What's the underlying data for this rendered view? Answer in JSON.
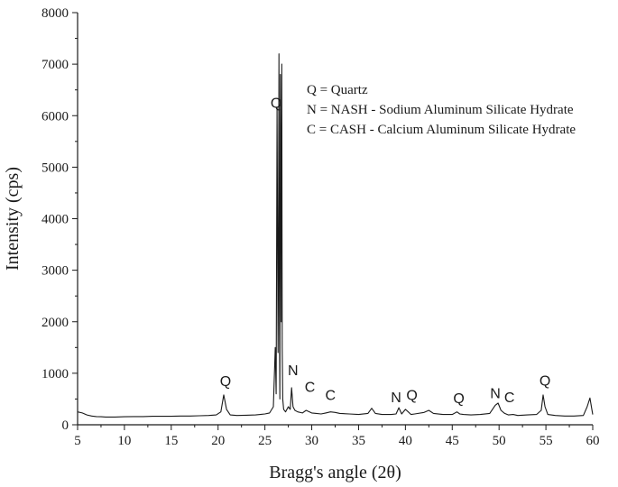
{
  "chart_data": {
    "type": "line",
    "xlabel": "Bragg's angle (2θ)",
    "ylabel": "Intensity (cps)",
    "xlim": [
      5,
      60
    ],
    "ylim": [
      0,
      8000
    ],
    "x_ticks": [
      5,
      10,
      15,
      20,
      25,
      30,
      35,
      40,
      45,
      50,
      55,
      60
    ],
    "y_ticks": [
      0,
      1000,
      2000,
      3000,
      4000,
      5000,
      6000,
      7000,
      8000
    ],
    "grid": false,
    "line_color": "#1a1a1a",
    "legend": [
      "Q = Quartz",
      "N = NASH - Sodium Aluminum Silicate Hydrate",
      "C = CASH - Calcium Aluminum Silicate Hydrate"
    ],
    "peak_labels": [
      {
        "text": "Q",
        "x": 26.2,
        "y": 6150
      },
      {
        "text": "Q",
        "x": 20.8,
        "y": 750
      },
      {
        "text": "N",
        "x": 28.0,
        "y": 960
      },
      {
        "text": "C",
        "x": 29.8,
        "y": 640
      },
      {
        "text": "C",
        "x": 32.0,
        "y": 480
      },
      {
        "text": "N",
        "x": 39.0,
        "y": 440
      },
      {
        "text": "Q",
        "x": 40.7,
        "y": 480
      },
      {
        "text": "Q",
        "x": 45.7,
        "y": 420
      },
      {
        "text": "N",
        "x": 49.6,
        "y": 520
      },
      {
        "text": "C",
        "x": 51.1,
        "y": 440
      },
      {
        "text": "Q",
        "x": 54.9,
        "y": 760
      }
    ],
    "series": [
      {
        "x": [
          5.0,
          5.5,
          6.0,
          6.5,
          7.0,
          7.5,
          8.0,
          9.0,
          10.0,
          11.0,
          12.0,
          13.0,
          14.0,
          15.0,
          16.0,
          17.0,
          18.0,
          19.0,
          19.8,
          20.3,
          20.6,
          20.9,
          21.3,
          22.0,
          23.0,
          24.0,
          24.5,
          25.0,
          25.5,
          25.9,
          26.1,
          26.2,
          26.3,
          26.4,
          26.45,
          26.5,
          26.55,
          26.6,
          26.65,
          26.7,
          26.75,
          26.8,
          26.85,
          26.9,
          27.0,
          27.2,
          27.5,
          27.7,
          27.85,
          28.0,
          28.2,
          28.5,
          29.0,
          29.4,
          30.0,
          30.5,
          31.0,
          31.5,
          32.0,
          32.5,
          33.0,
          34.0,
          35.0,
          36.0,
          36.4,
          36.8,
          37.5,
          38.5,
          39.0,
          39.3,
          39.6,
          40.0,
          40.3,
          40.6,
          41.0,
          42.0,
          42.5,
          43.0,
          44.0,
          45.0,
          45.5,
          45.8,
          46.2,
          47.0,
          48.0,
          49.0,
          49.6,
          49.9,
          50.2,
          50.6,
          51.0,
          51.5,
          52.0,
          53.0,
          54.0,
          54.5,
          54.7,
          54.9,
          55.2,
          56.0,
          57.0,
          58.0,
          59.0,
          59.4,
          59.7,
          59.9,
          60.0
        ],
        "y": [
          250,
          230,
          190,
          170,
          160,
          155,
          150,
          150,
          155,
          160,
          160,
          165,
          165,
          165,
          170,
          170,
          175,
          180,
          190,
          250,
          580,
          300,
          190,
          180,
          185,
          190,
          200,
          210,
          230,
          350,
          1500,
          600,
          6150,
          1400,
          3500,
          7200,
          2200,
          500,
          6800,
          5000,
          2000,
          7000,
          1500,
          500,
          300,
          250,
          350,
          300,
          720,
          350,
          280,
          250,
          230,
          280,
          230,
          220,
          210,
          230,
          250,
          240,
          220,
          210,
          200,
          220,
          320,
          220,
          200,
          200,
          210,
          330,
          210,
          300,
          250,
          200,
          210,
          240,
          280,
          220,
          200,
          200,
          250,
          210,
          200,
          190,
          200,
          220,
          380,
          420,
          280,
          220,
          190,
          200,
          180,
          190,
          200,
          280,
          580,
          350,
          200,
          180,
          170,
          170,
          180,
          350,
          520,
          300,
          200
        ]
      }
    ]
  }
}
